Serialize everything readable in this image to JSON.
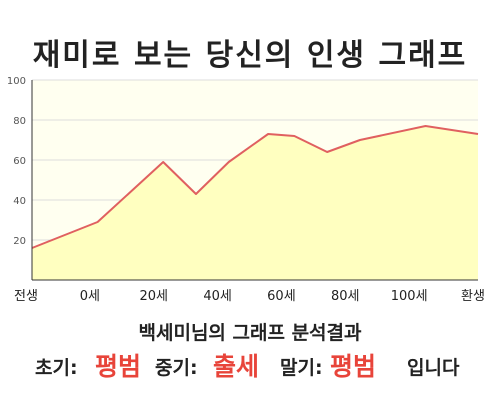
{
  "chart_data": {
    "type": "area",
    "title": "재미로 보는 당신의 인생 그래프",
    "categories": [
      "전생",
      "0세",
      "20세",
      "40세",
      "60세",
      "80세",
      "100세",
      "환생"
    ],
    "x": [
      -20,
      0,
      20,
      30,
      40,
      52,
      60,
      70,
      80,
      100,
      116
    ],
    "values": [
      16,
      29,
      59,
      43,
      59,
      73,
      72,
      64,
      70,
      77,
      73
    ],
    "xlim": [
      -20,
      116
    ],
    "ylim": [
      0,
      100
    ],
    "yticks": [
      20,
      40,
      60,
      80,
      100
    ],
    "grid": true,
    "colors": {
      "line": "#e06060",
      "fill": "#ffffc0",
      "plot_bg": "#fffff0",
      "grid": "#dcdcdc"
    }
  },
  "result": {
    "subtitle": "백세미님의 그래프 분석결과",
    "early_label": "초기:",
    "early_value": "평범",
    "mid_label": "중기:",
    "mid_value": "출세",
    "late_label": "말기:",
    "late_value": "평범",
    "ending": "입니다"
  }
}
